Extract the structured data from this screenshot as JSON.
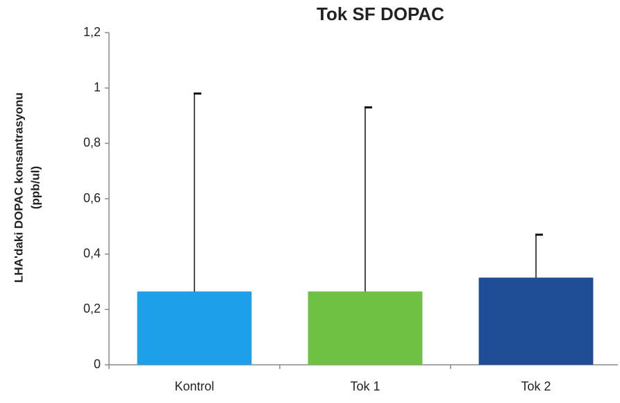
{
  "chart_data": {
    "type": "bar",
    "title": "Tok SF DOPAC",
    "ylabel": [
      "LHA'daki DOPAC konsantrasyonu",
      "(ppb/ul)"
    ],
    "categories": [
      "Kontrol",
      "Tok 1",
      "Tok 2"
    ],
    "values": [
      0.265,
      0.265,
      0.315
    ],
    "errors": [
      0.715,
      0.665,
      0.155
    ],
    "colors": [
      "#1e9fea",
      "#6fc144",
      "#1f4e96"
    ],
    "ylim": [
      0,
      1.2
    ],
    "yticks": [
      0,
      {
        "value": 0.2,
        "label": "0,2"
      },
      {
        "value": 0.4,
        "label": "0,4"
      },
      {
        "value": 0.6,
        "label": "0,6"
      },
      {
        "value": 0.8,
        "label": "0,8"
      },
      1,
      {
        "value": 1.2,
        "label": "1,2"
      }
    ],
    "grid": false
  }
}
